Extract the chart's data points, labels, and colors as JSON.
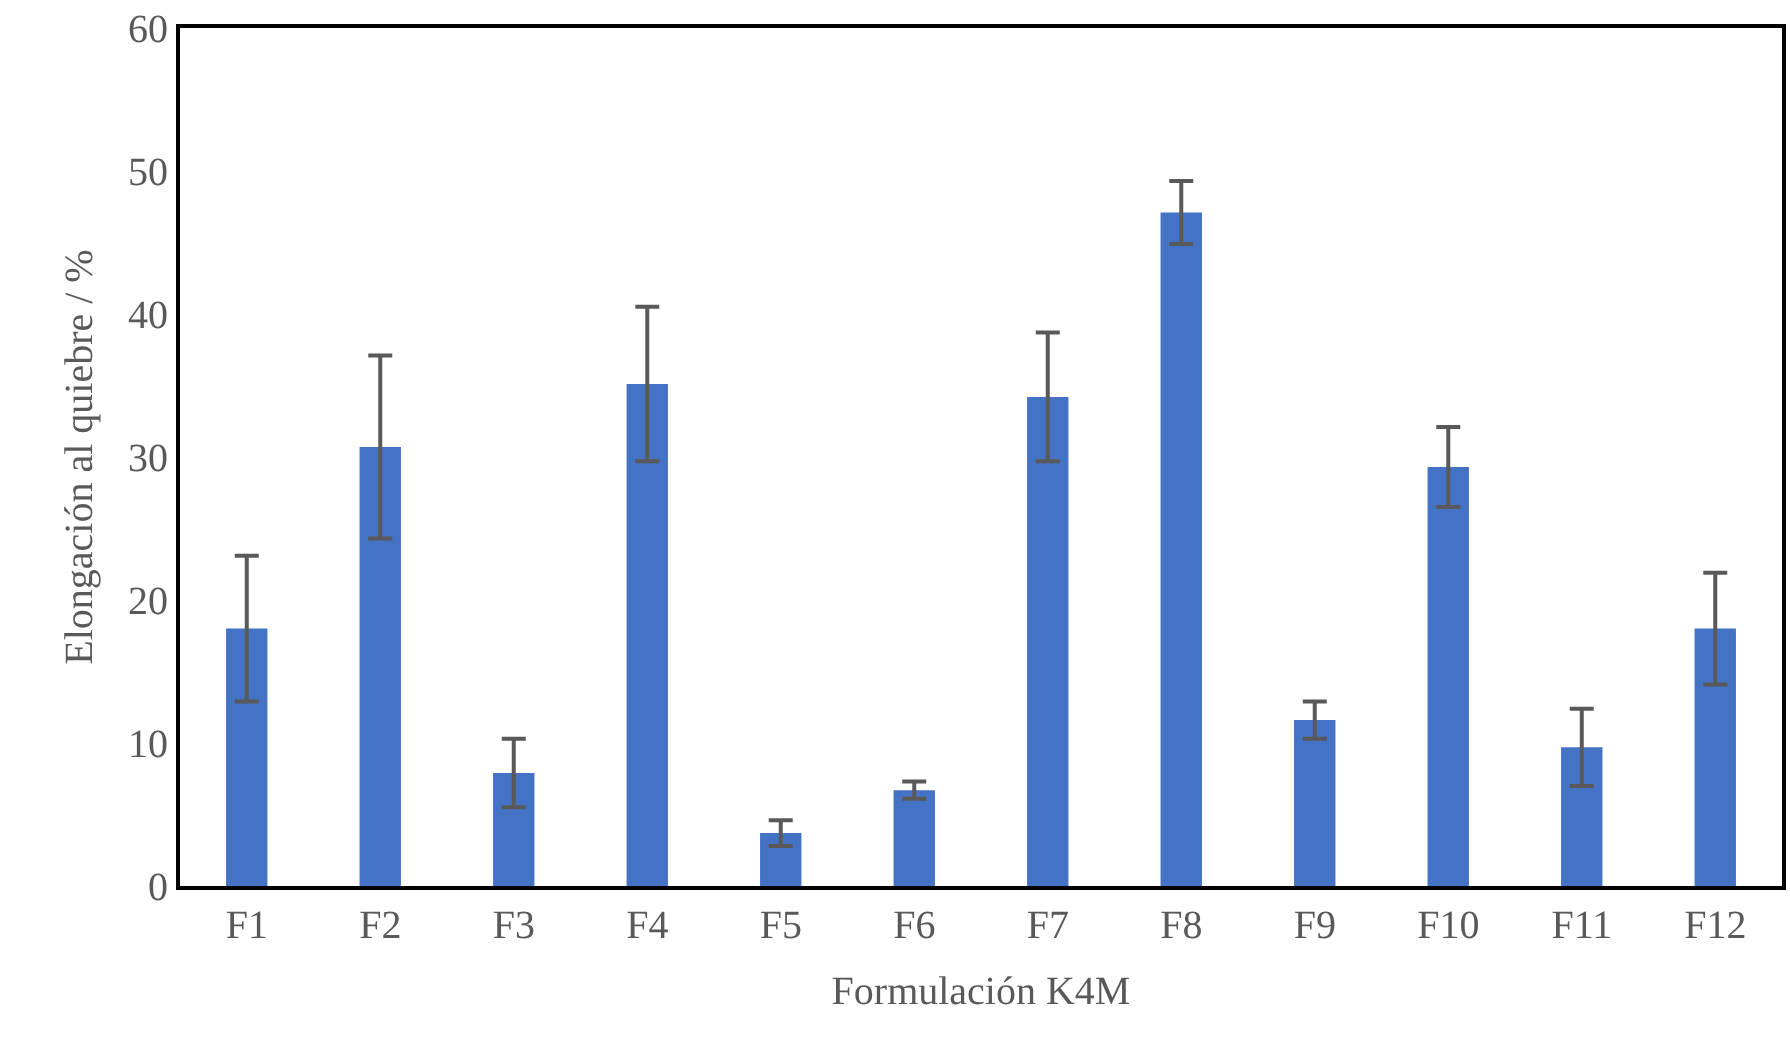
{
  "chart_data": {
    "type": "bar",
    "xlabel": "Formulación K4M",
    "ylabel": "Elongación al quiebre / %",
    "categories": [
      "F1",
      "F2",
      "F3",
      "F4",
      "F5",
      "F6",
      "F7",
      "F8",
      "F9",
      "F10",
      "F11",
      "F12"
    ],
    "values": [
      18.0,
      30.7,
      7.9,
      35.1,
      3.7,
      6.7,
      34.2,
      47.1,
      11.6,
      29.3,
      9.7,
      18.0
    ],
    "errors": [
      5.1,
      6.4,
      2.4,
      5.4,
      0.9,
      0.6,
      4.5,
      2.2,
      1.3,
      2.8,
      2.7,
      3.9
    ],
    "color": "#4472c4",
    "ylim": [
      0,
      60
    ],
    "yticks": [
      0,
      10,
      20,
      30,
      40,
      50,
      60
    ],
    "legend": false
  }
}
